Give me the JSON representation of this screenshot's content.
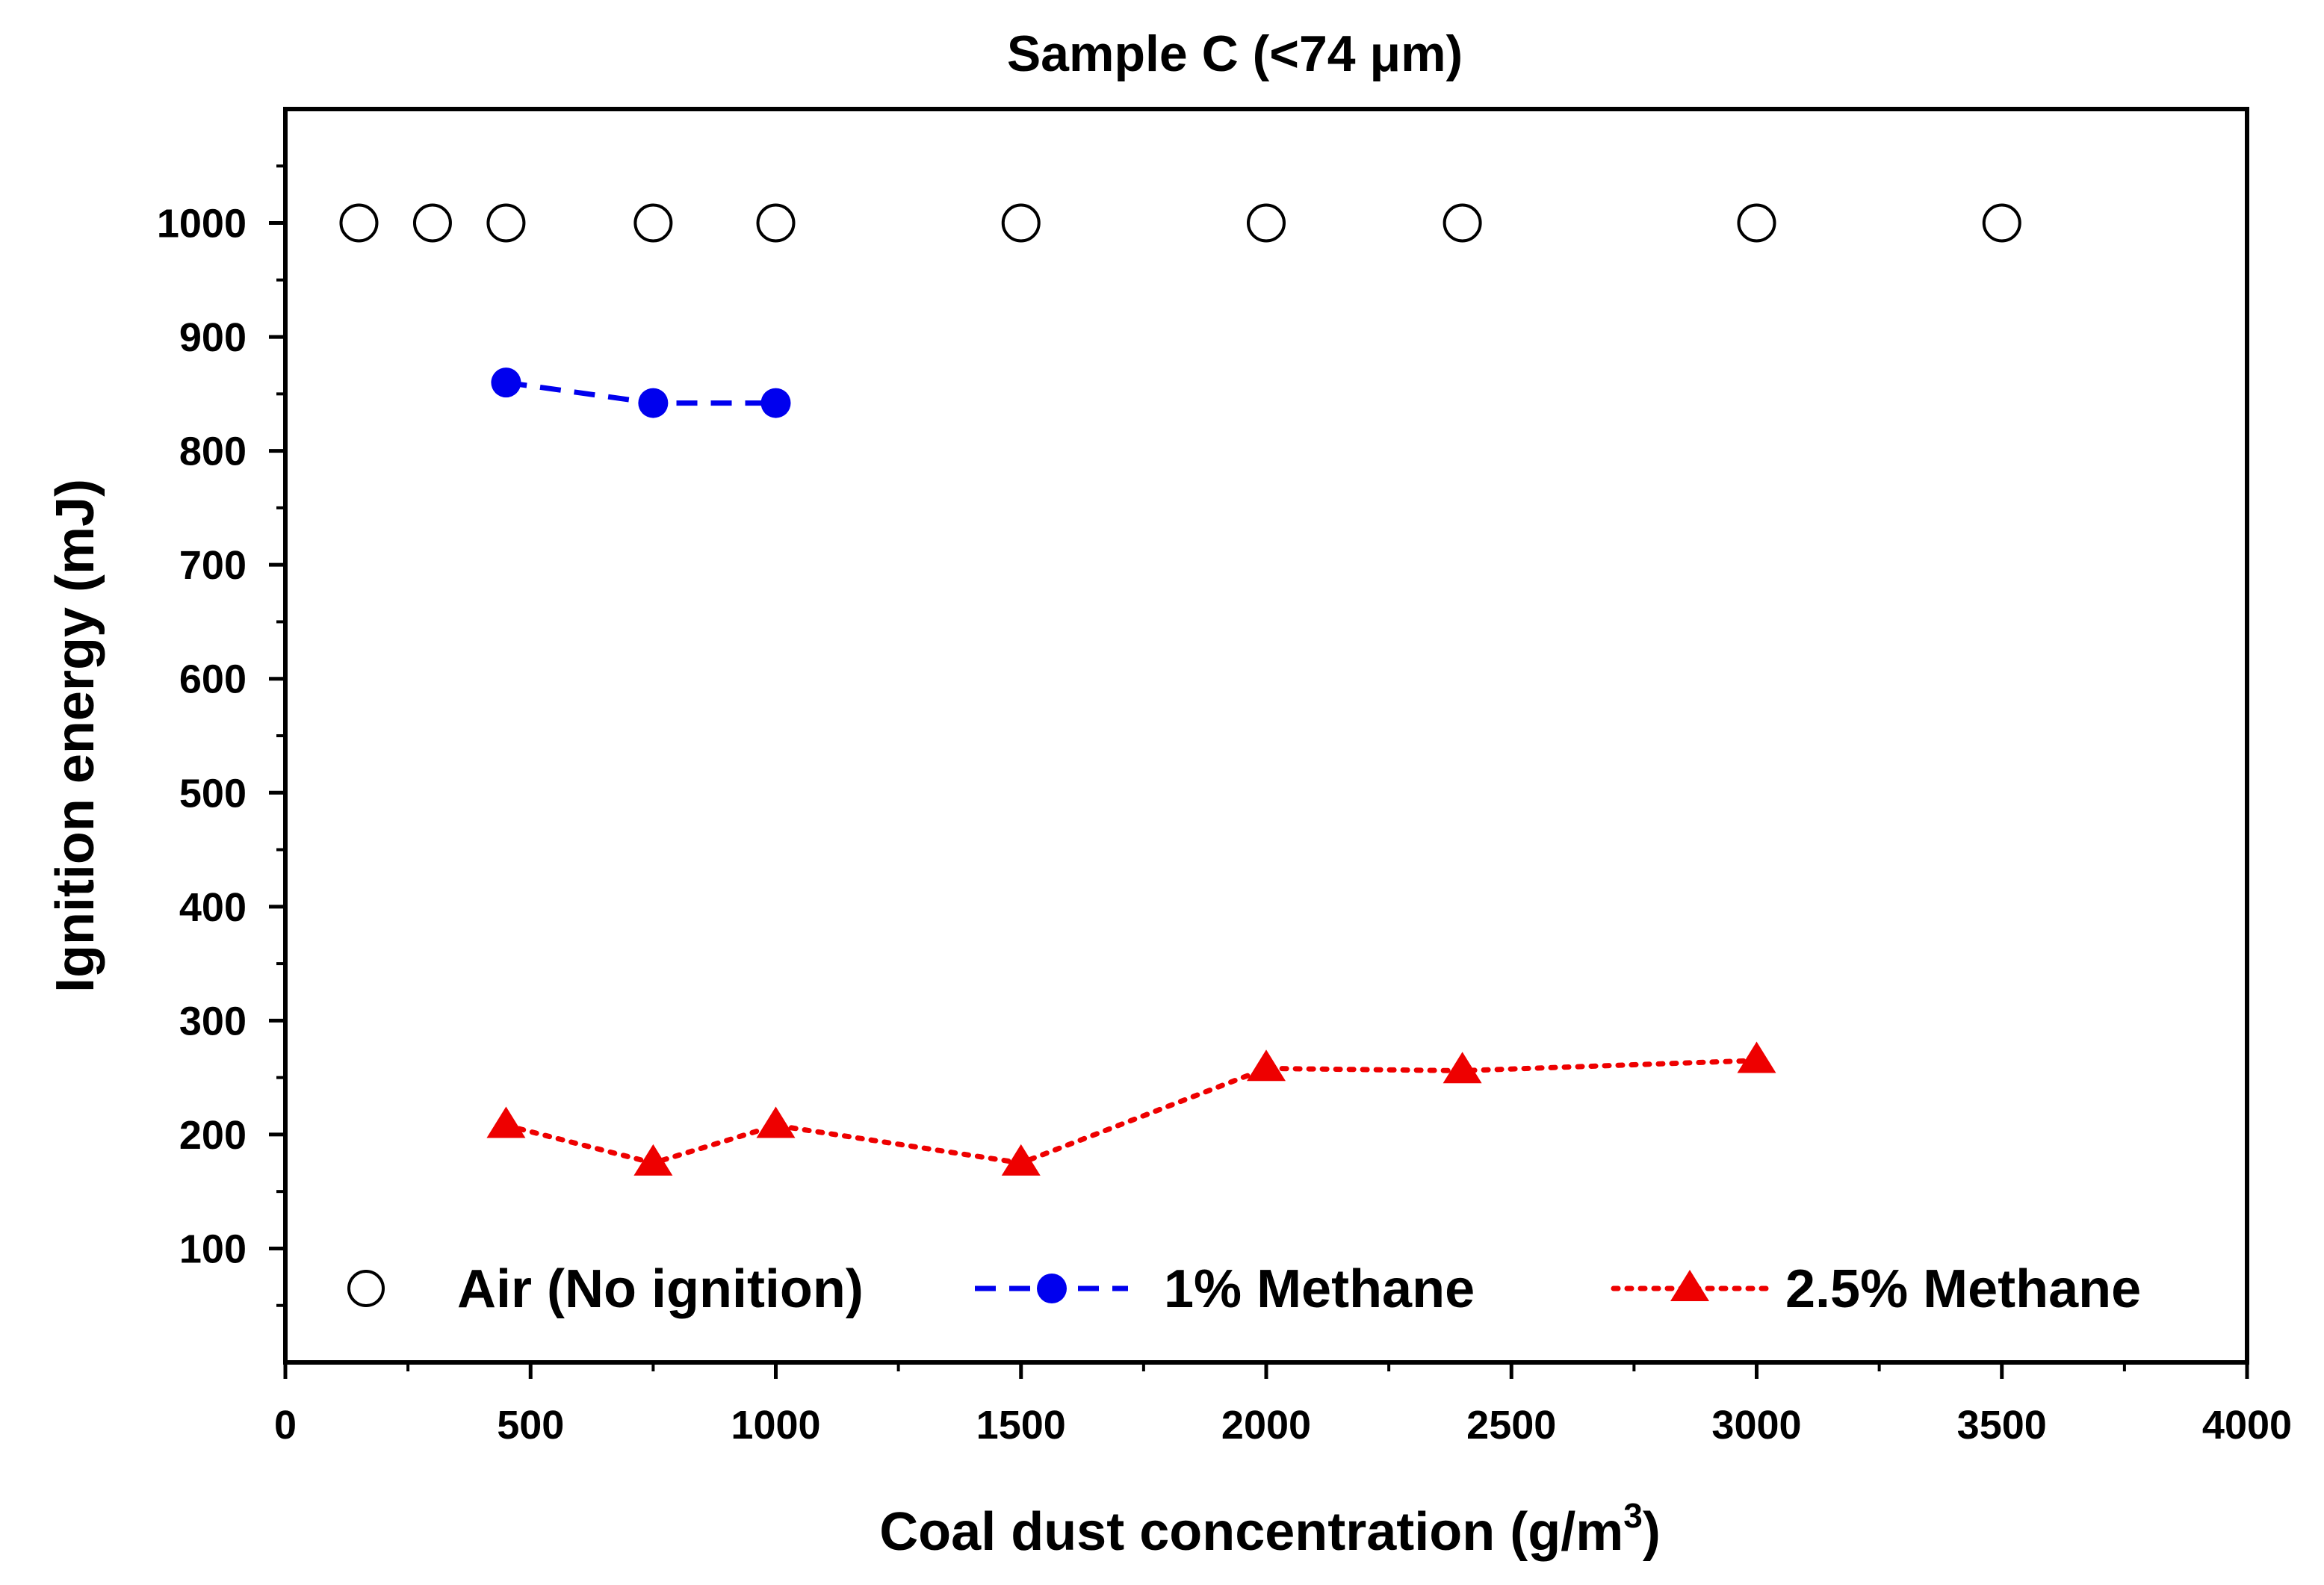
{
  "chart_data": {
    "type": "line",
    "title": "Sample C (<74 μm)",
    "xlabel": "Coal dust concentration (g/m",
    "xlabel_sup": "3",
    "xlabel_tail": ")",
    "ylabel": "Ignition energy (mJ)",
    "xlim": [
      0,
      4000
    ],
    "ylim": [
      0,
      1100
    ],
    "x_ticks": [
      0,
      500,
      1000,
      1500,
      2000,
      2500,
      3000,
      3500,
      4000
    ],
    "y_ticks": [
      100,
      200,
      300,
      400,
      500,
      600,
      700,
      800,
      900,
      1000
    ],
    "x_tick_labels": [
      "0",
      "500",
      "1000",
      "1500",
      "2000",
      "2500",
      "3000",
      "3500",
      "4000"
    ],
    "y_tick_labels": [
      "100",
      "200",
      "300",
      "400",
      "500",
      "600",
      "700",
      "800",
      "900",
      "1000"
    ],
    "grid": false,
    "legend_position": "bottom",
    "series": [
      {
        "name": "Air (No ignition)",
        "marker": "open-circle",
        "line": "none",
        "color": "#000000",
        "x": [
          150,
          300,
          450,
          750,
          1000,
          1500,
          2000,
          2400,
          3000,
          3500
        ],
        "y": [
          1000,
          1000,
          1000,
          1000,
          1000,
          1000,
          1000,
          1000,
          1000,
          1000
        ]
      },
      {
        "name": "1% Methane",
        "marker": "filled-circle",
        "line": "dashed",
        "color": "#0000ee",
        "x": [
          450,
          750,
          1000
        ],
        "y": [
          860,
          842,
          842
        ]
      },
      {
        "name": "2.5% Methane",
        "marker": "filled-triangle",
        "line": "dotted",
        "color": "#ee0000",
        "x": [
          450,
          750,
          1000,
          1500,
          2000,
          2400,
          3000
        ],
        "y": [
          208,
          175,
          208,
          175,
          258,
          256,
          265
        ]
      }
    ]
  }
}
